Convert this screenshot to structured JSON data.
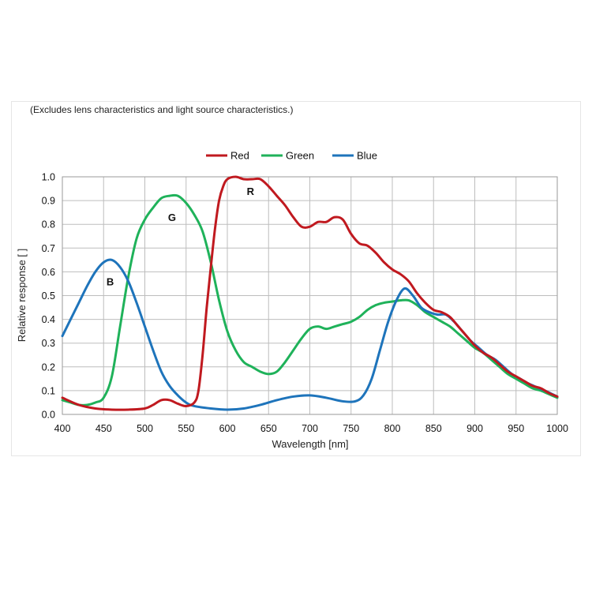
{
  "note": "(Excludes lens characteristics and light source characteristics.)",
  "chart_data": {
    "type": "line",
    "xlabel": "Wavelength [nm]",
    "ylabel": "Relative response [ ]",
    "xlim": [
      400,
      1000
    ],
    "ylim": [
      0,
      1.0
    ],
    "x_ticks": [
      400,
      450,
      500,
      550,
      600,
      650,
      700,
      750,
      800,
      850,
      900,
      950,
      1000
    ],
    "y_ticks": [
      0.0,
      0.1,
      0.2,
      0.3,
      0.4,
      0.5,
      0.6,
      0.7,
      0.8,
      0.9,
      1.0
    ],
    "y_tick_labels": [
      "0.0",
      "0.1",
      "0.2",
      "0.3",
      "0.4",
      "0.5",
      "0.6",
      "0.7",
      "0.8",
      "0.9",
      "1.0"
    ],
    "grid": true,
    "legend_position": "top-center",
    "series": [
      {
        "name": "Red",
        "color": "#c0191f",
        "label": "R",
        "label_at": [
          628,
          0.94
        ],
        "points": [
          [
            400,
            0.07
          ],
          [
            420,
            0.04
          ],
          [
            440,
            0.025
          ],
          [
            460,
            0.02
          ],
          [
            480,
            0.02
          ],
          [
            500,
            0.025
          ],
          [
            510,
            0.04
          ],
          [
            520,
            0.06
          ],
          [
            530,
            0.06
          ],
          [
            540,
            0.045
          ],
          [
            550,
            0.035
          ],
          [
            560,
            0.05
          ],
          [
            565,
            0.1
          ],
          [
            570,
            0.25
          ],
          [
            575,
            0.45
          ],
          [
            580,
            0.62
          ],
          [
            585,
            0.78
          ],
          [
            590,
            0.9
          ],
          [
            595,
            0.96
          ],
          [
            600,
            0.99
          ],
          [
            610,
            1.0
          ],
          [
            620,
            0.99
          ],
          [
            630,
            0.99
          ],
          [
            640,
            0.99
          ],
          [
            650,
            0.96
          ],
          [
            660,
            0.92
          ],
          [
            670,
            0.88
          ],
          [
            680,
            0.83
          ],
          [
            690,
            0.79
          ],
          [
            700,
            0.79
          ],
          [
            710,
            0.81
          ],
          [
            720,
            0.81
          ],
          [
            730,
            0.83
          ],
          [
            740,
            0.82
          ],
          [
            750,
            0.76
          ],
          [
            760,
            0.72
          ],
          [
            770,
            0.71
          ],
          [
            780,
            0.68
          ],
          [
            790,
            0.64
          ],
          [
            800,
            0.61
          ],
          [
            810,
            0.59
          ],
          [
            820,
            0.56
          ],
          [
            830,
            0.51
          ],
          [
            840,
            0.47
          ],
          [
            850,
            0.44
          ],
          [
            860,
            0.43
          ],
          [
            870,
            0.41
          ],
          [
            880,
            0.37
          ],
          [
            890,
            0.33
          ],
          [
            900,
            0.29
          ],
          [
            910,
            0.26
          ],
          [
            920,
            0.24
          ],
          [
            930,
            0.21
          ],
          [
            940,
            0.18
          ],
          [
            950,
            0.16
          ],
          [
            960,
            0.14
          ],
          [
            970,
            0.12
          ],
          [
            980,
            0.11
          ],
          [
            990,
            0.09
          ],
          [
            1000,
            0.075
          ]
        ]
      },
      {
        "name": "Green",
        "color": "#1fb25a",
        "label": "G",
        "label_at": [
          533,
          0.83
        ],
        "points": [
          [
            400,
            0.06
          ],
          [
            410,
            0.05
          ],
          [
            420,
            0.04
          ],
          [
            430,
            0.04
          ],
          [
            440,
            0.05
          ],
          [
            450,
            0.07
          ],
          [
            460,
            0.16
          ],
          [
            470,
            0.37
          ],
          [
            480,
            0.58
          ],
          [
            490,
            0.74
          ],
          [
            500,
            0.82
          ],
          [
            510,
            0.87
          ],
          [
            520,
            0.91
          ],
          [
            530,
            0.92
          ],
          [
            540,
            0.92
          ],
          [
            550,
            0.89
          ],
          [
            560,
            0.84
          ],
          [
            570,
            0.77
          ],
          [
            580,
            0.64
          ],
          [
            590,
            0.48
          ],
          [
            600,
            0.35
          ],
          [
            610,
            0.27
          ],
          [
            620,
            0.22
          ],
          [
            630,
            0.2
          ],
          [
            640,
            0.18
          ],
          [
            650,
            0.17
          ],
          [
            660,
            0.18
          ],
          [
            670,
            0.22
          ],
          [
            680,
            0.27
          ],
          [
            690,
            0.32
          ],
          [
            700,
            0.36
          ],
          [
            710,
            0.37
          ],
          [
            720,
            0.36
          ],
          [
            730,
            0.37
          ],
          [
            740,
            0.38
          ],
          [
            750,
            0.39
          ],
          [
            760,
            0.41
          ],
          [
            770,
            0.44
          ],
          [
            780,
            0.46
          ],
          [
            790,
            0.47
          ],
          [
            800,
            0.475
          ],
          [
            810,
            0.48
          ],
          [
            820,
            0.48
          ],
          [
            830,
            0.46
          ],
          [
            840,
            0.43
          ],
          [
            850,
            0.41
          ],
          [
            860,
            0.39
          ],
          [
            870,
            0.37
          ],
          [
            880,
            0.34
          ],
          [
            890,
            0.31
          ],
          [
            900,
            0.28
          ],
          [
            910,
            0.26
          ],
          [
            920,
            0.23
          ],
          [
            930,
            0.2
          ],
          [
            940,
            0.17
          ],
          [
            950,
            0.15
          ],
          [
            960,
            0.13
          ],
          [
            970,
            0.11
          ],
          [
            980,
            0.1
          ],
          [
            990,
            0.085
          ],
          [
            1000,
            0.07
          ]
        ]
      },
      {
        "name": "Blue",
        "color": "#1e74bb",
        "label": "B",
        "label_at": [
          458,
          0.56
        ],
        "points": [
          [
            400,
            0.33
          ],
          [
            410,
            0.4
          ],
          [
            420,
            0.47
          ],
          [
            430,
            0.54
          ],
          [
            440,
            0.6
          ],
          [
            450,
            0.64
          ],
          [
            460,
            0.65
          ],
          [
            470,
            0.62
          ],
          [
            480,
            0.56
          ],
          [
            490,
            0.47
          ],
          [
            500,
            0.37
          ],
          [
            510,
            0.27
          ],
          [
            520,
            0.18
          ],
          [
            530,
            0.12
          ],
          [
            540,
            0.08
          ],
          [
            550,
            0.05
          ],
          [
            560,
            0.035
          ],
          [
            580,
            0.025
          ],
          [
            600,
            0.02
          ],
          [
            620,
            0.025
          ],
          [
            640,
            0.04
          ],
          [
            660,
            0.06
          ],
          [
            680,
            0.075
          ],
          [
            700,
            0.08
          ],
          [
            720,
            0.07
          ],
          [
            740,
            0.055
          ],
          [
            755,
            0.055
          ],
          [
            765,
            0.08
          ],
          [
            775,
            0.15
          ],
          [
            785,
            0.27
          ],
          [
            795,
            0.39
          ],
          [
            805,
            0.48
          ],
          [
            815,
            0.53
          ],
          [
            825,
            0.5
          ],
          [
            835,
            0.45
          ],
          [
            845,
            0.43
          ],
          [
            855,
            0.42
          ],
          [
            865,
            0.42
          ],
          [
            875,
            0.39
          ],
          [
            885,
            0.35
          ],
          [
            895,
            0.31
          ],
          [
            905,
            0.28
          ],
          [
            915,
            0.25
          ],
          [
            925,
            0.23
          ],
          [
            935,
            0.2
          ],
          [
            945,
            0.17
          ],
          [
            955,
            0.15
          ],
          [
            965,
            0.13
          ],
          [
            975,
            0.115
          ],
          [
            985,
            0.1
          ],
          [
            1000,
            0.075
          ]
        ]
      }
    ]
  }
}
